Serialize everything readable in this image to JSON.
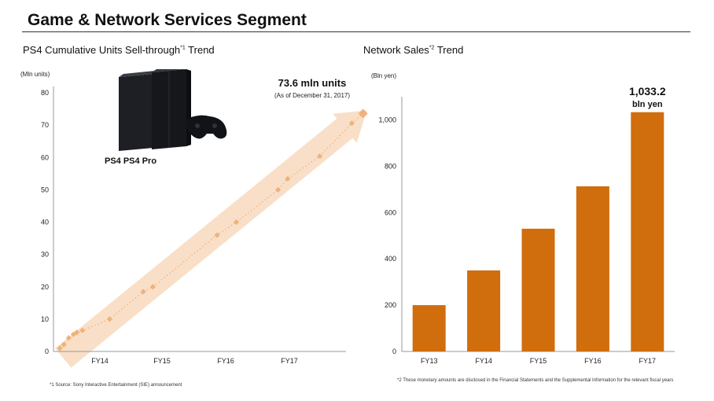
{
  "page": {
    "title": "Game & Network Services Segment"
  },
  "left_chart": {
    "heading": "PS4 Cumulative Units Sell-through",
    "heading_sup": "*1",
    "heading_suffix": "Trend",
    "unit_label": "(Mln units)",
    "callout_value": "73.6 mln units",
    "callout_date": "(As of December 31, 2017)",
    "footnote": "*1 Source: Sony Interactive Entertainment (SIE) announcement",
    "logos": "PS4  PS4 Pro",
    "accent_color": "#f0b27a",
    "arrow_color": "#f8d9bd"
  },
  "right_chart": {
    "heading": "Network Sales",
    "heading_sup": "*2",
    "heading_suffix": "Trend",
    "unit_label": "(Bln yen)",
    "callout_value": "1,033.2",
    "callout_unit": "bln yen",
    "footnote": "*2 These monetary amounts are disclosed in the Financial Statements and the Supplemental Information for the relevant fiscal years",
    "bar_color": "#d06d0c"
  },
  "chart_data": [
    {
      "type": "line",
      "title": "PS4 Cumulative Units Sell-through Trend",
      "ylabel": "(Mln units)",
      "ylim": [
        0,
        80
      ],
      "yticks": [
        0,
        10,
        20,
        30,
        40,
        50,
        60,
        70,
        80
      ],
      "xticks": [
        "FY14",
        "FY15",
        "FY16",
        "FY17"
      ],
      "series": [
        {
          "name": "PS4 cumulative units",
          "points": [
            {
              "t": 0.4,
              "y": 1.0
            },
            {
              "t": 0.65,
              "y": 2.1
            },
            {
              "t": 0.95,
              "y": 4.2
            },
            {
              "t": 1.25,
              "y": 5.3
            },
            {
              "t": 1.45,
              "y": 5.9
            },
            {
              "t": 1.8,
              "y": 6.5
            },
            {
              "t": 3.5,
              "y": 10.0
            },
            {
              "t": 5.6,
              "y": 18.5
            },
            {
              "t": 6.2,
              "y": 20.0
            },
            {
              "t": 10.2,
              "y": 36.0
            },
            {
              "t": 11.4,
              "y": 40.0
            },
            {
              "t": 14.0,
              "y": 50.0
            },
            {
              "t": 14.6,
              "y": 53.4
            },
            {
              "t": 16.6,
              "y": 60.4
            },
            {
              "t": 18.6,
              "y": 70.6
            },
            {
              "t": 19.3,
              "y": 73.6
            }
          ]
        }
      ]
    },
    {
      "type": "bar",
      "title": "Network Sales Trend",
      "ylabel": "(Bln yen)",
      "ylim": [
        0,
        1100
      ],
      "yticks": [
        0,
        200,
        400,
        600,
        800,
        1000
      ],
      "ytick_labels": [
        "0",
        "200",
        "400",
        "600",
        "800",
        "1,000"
      ],
      "categories": [
        "FY13",
        "FY14",
        "FY15",
        "FY16",
        "FY17"
      ],
      "values": [
        200,
        350,
        530,
        713,
        1033.2
      ]
    }
  ]
}
